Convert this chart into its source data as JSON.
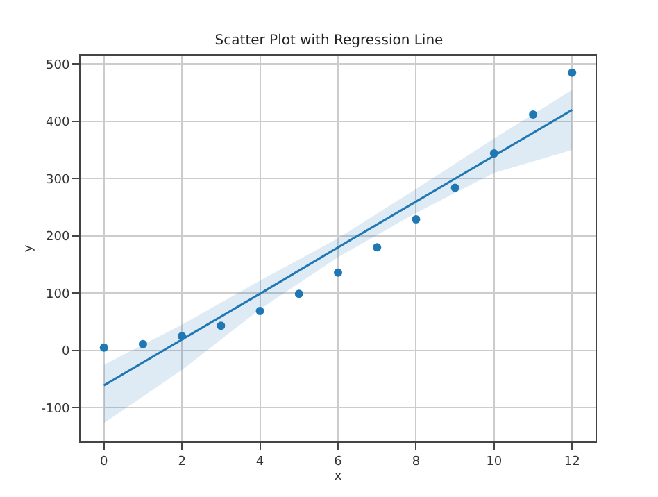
{
  "chart_data": {
    "type": "scatter",
    "title": "Scatter Plot with Regression Line",
    "xlabel": "x",
    "ylabel": "y",
    "series": [
      {
        "color": "#1f77b4",
        "marker": "circle",
        "x": [
          0,
          1,
          2,
          3,
          4,
          5,
          6,
          7,
          8,
          9,
          10,
          11,
          12
        ],
        "values": [
          5,
          11,
          25,
          43,
          69,
          99,
          136,
          180,
          229,
          284,
          344,
          412,
          485
        ]
      },
      {
        "type": "line",
        "color": "#1f77b4",
        "x": [
          0,
          2,
          4,
          6,
          8,
          10,
          12
        ],
        "values": [
          -61,
          19,
          99,
          180,
          260,
          340,
          420
        ],
        "lower": [
          -127,
          -34,
          72,
          163,
          240,
          310,
          350
        ],
        "upper": [
          -25,
          45,
          122,
          196,
          282,
          370,
          455
        ]
      }
    ],
    "xlim": [
      -0.6,
      12.6
    ],
    "xticks": [
      0,
      2,
      4,
      6,
      8,
      10,
      12
    ],
    "ylim": [
      -159,
      515
    ],
    "yticks": [
      -100,
      0,
      100,
      200,
      300,
      400,
      500
    ],
    "grid": true,
    "legend": false
  }
}
